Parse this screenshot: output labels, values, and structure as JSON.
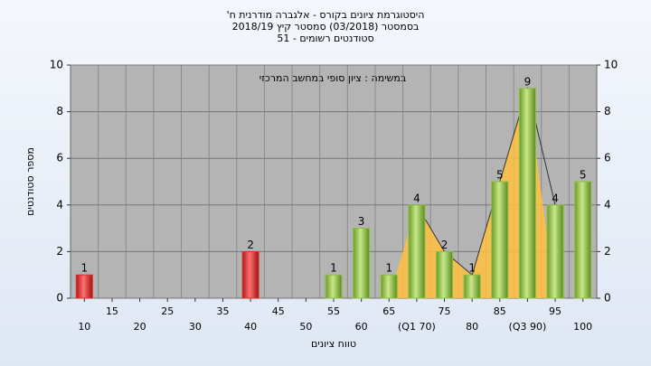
{
  "chart_data": {
    "type": "bar",
    "title": [
      "היסטוגרמת ציונים בקורס - אלגברה מודרנית ח'",
      "בסמסטר (03/2018) סמסטר קיץ 2018/19",
      "סטודנטים רשומים - 51"
    ],
    "subtitle": "במשימה : ציון סופי במחשב המרכזי",
    "y_label": "מספר סטודנטים",
    "x_label": "טווח ציונים",
    "categories": [
      "10",
      "15",
      "20",
      "25",
      "30",
      "35",
      "40",
      "45",
      "50",
      "55",
      "60",
      "65",
      "(Q1 70)",
      "75",
      "80",
      "85",
      "(Q3 90)",
      "95",
      "100"
    ],
    "values": [
      1,
      0,
      0,
      0,
      0,
      0,
      2,
      0,
      0,
      1,
      3,
      1,
      4,
      2,
      1,
      5,
      9,
      4,
      5
    ],
    "colors": [
      "#e03030",
      "#e03030",
      "#e03030",
      "#e03030",
      "#e03030",
      "#e03030",
      "#e03030",
      "#e03030",
      "#e03030",
      "#8cc040",
      "#8cc040",
      "#8cc040",
      "#8cc040",
      "#8cc040",
      "#8cc040",
      "#8cc040",
      "#8cc040",
      "#8cc040",
      "#8cc040"
    ],
    "ylim": [
      0,
      10
    ],
    "yticks": [
      0,
      2,
      4,
      6,
      8,
      10
    ],
    "y2lim": [
      0,
      10
    ],
    "y2ticks": [
      0,
      2,
      4,
      6,
      8,
      10
    ],
    "grid": true
  }
}
